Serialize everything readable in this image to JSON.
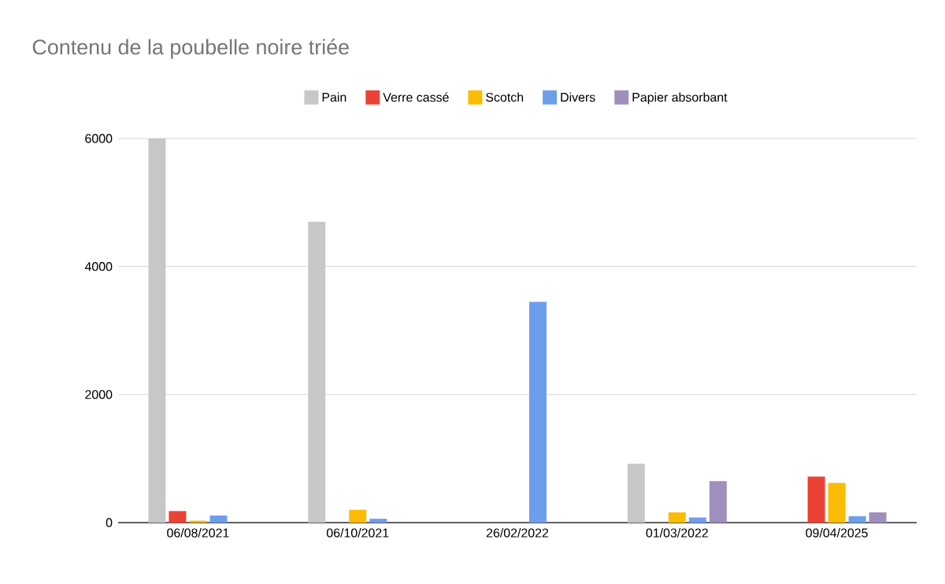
{
  "chart_data": {
    "type": "bar",
    "title": "Contenu de la poubelle noire triée",
    "categories": [
      "06/08/2021",
      "06/10/2021",
      "26/02/2022",
      "01/03/2022",
      "09/04/2025"
    ],
    "series": [
      {
        "name": "Pain",
        "color": "#c7c7c7",
        "values": [
          6000,
          4700,
          null,
          920,
          null
        ]
      },
      {
        "name": "Verre cassé",
        "color": "#ea4335",
        "values": [
          180,
          null,
          null,
          null,
          720
        ]
      },
      {
        "name": "Scotch",
        "color": "#fbbc04",
        "values": [
          30,
          200,
          null,
          160,
          620
        ]
      },
      {
        "name": "Divers",
        "color": "#6d9eeb",
        "values": [
          110,
          60,
          3450,
          80,
          100
        ]
      },
      {
        "name": "Papier absorbant",
        "color": "#9e8fbd",
        "values": [
          null,
          null,
          null,
          650,
          160
        ]
      }
    ],
    "ylim": [
      0,
      6000
    ],
    "yticks": [
      0,
      2000,
      4000,
      6000
    ],
    "grid": "y",
    "legend": "top"
  }
}
